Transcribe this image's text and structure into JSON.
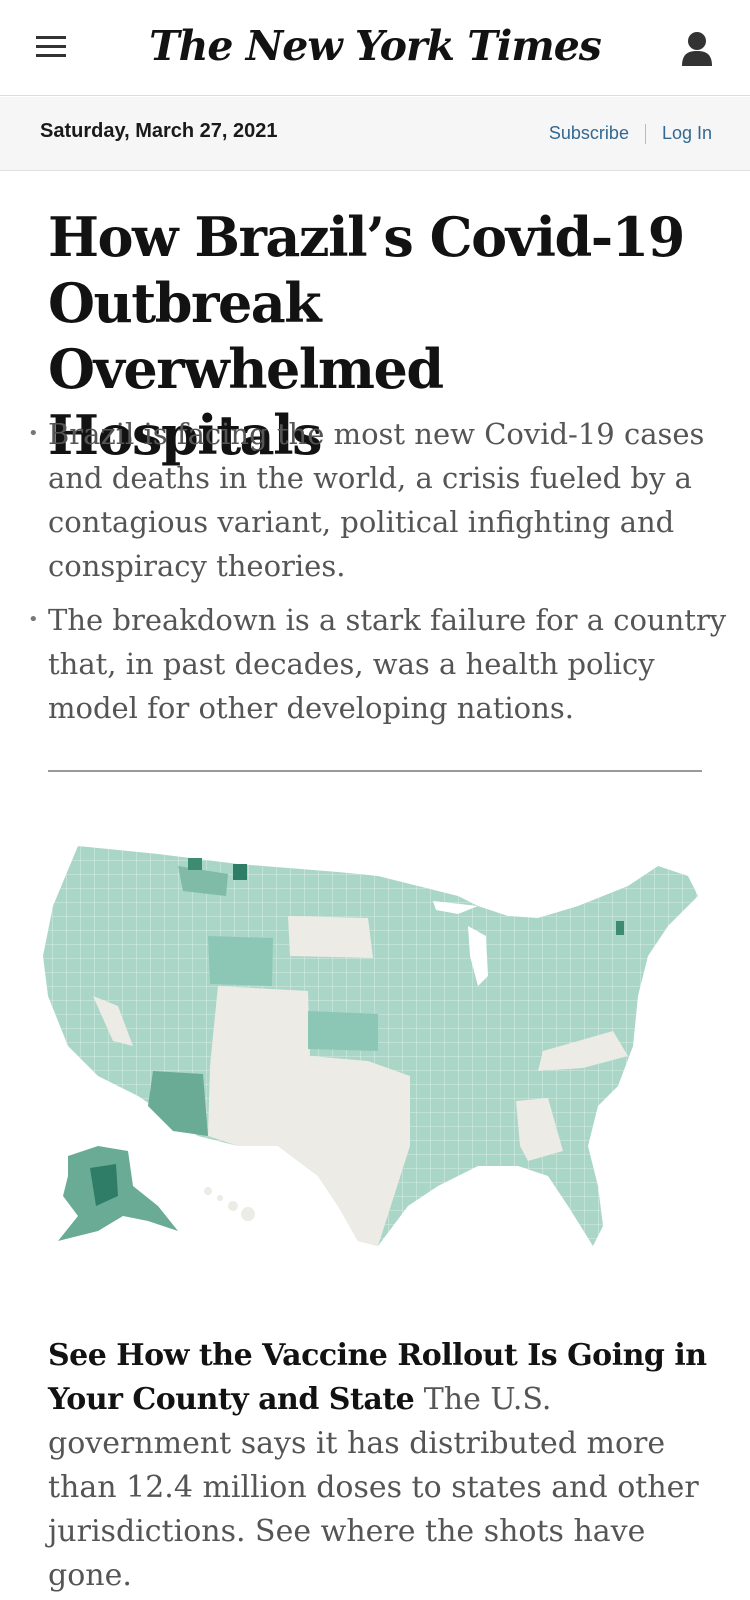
{
  "header": {
    "logo_text": "The New York Times",
    "menu_icon": "hamburger-menu-icon",
    "user_icon": "user-account-icon"
  },
  "datebar": {
    "date": "Saturday, March 27, 2021",
    "subscribe_label": "Subscribe",
    "login_label": "Log In"
  },
  "article": {
    "headline": "How Brazil’s Covid-19 Outbreak Overwhelmed Hospitals",
    "summary": [
      "Brazil is facing the most new Covid-19 cases and deaths in the world, a crisis fueled by a contagious variant, political infighting and conspiracy theories.",
      "The breakdown is a stark failure for a country that, in past decades, was a health policy model for other developing nations."
    ]
  },
  "promo": {
    "title": "See How the Vaccine Rollout Is Going in Your County and State",
    "body": "The U.S. government says it has distributed more than 12.4 million doses to states and other jurisdictions. See where the shots have gone."
  },
  "colors": {
    "link": "#326891",
    "map_light": "#cfe6de",
    "map_mid": "#8cc7b5",
    "map_dark": "#2f7d66",
    "map_nodata": "#ecebe6"
  }
}
